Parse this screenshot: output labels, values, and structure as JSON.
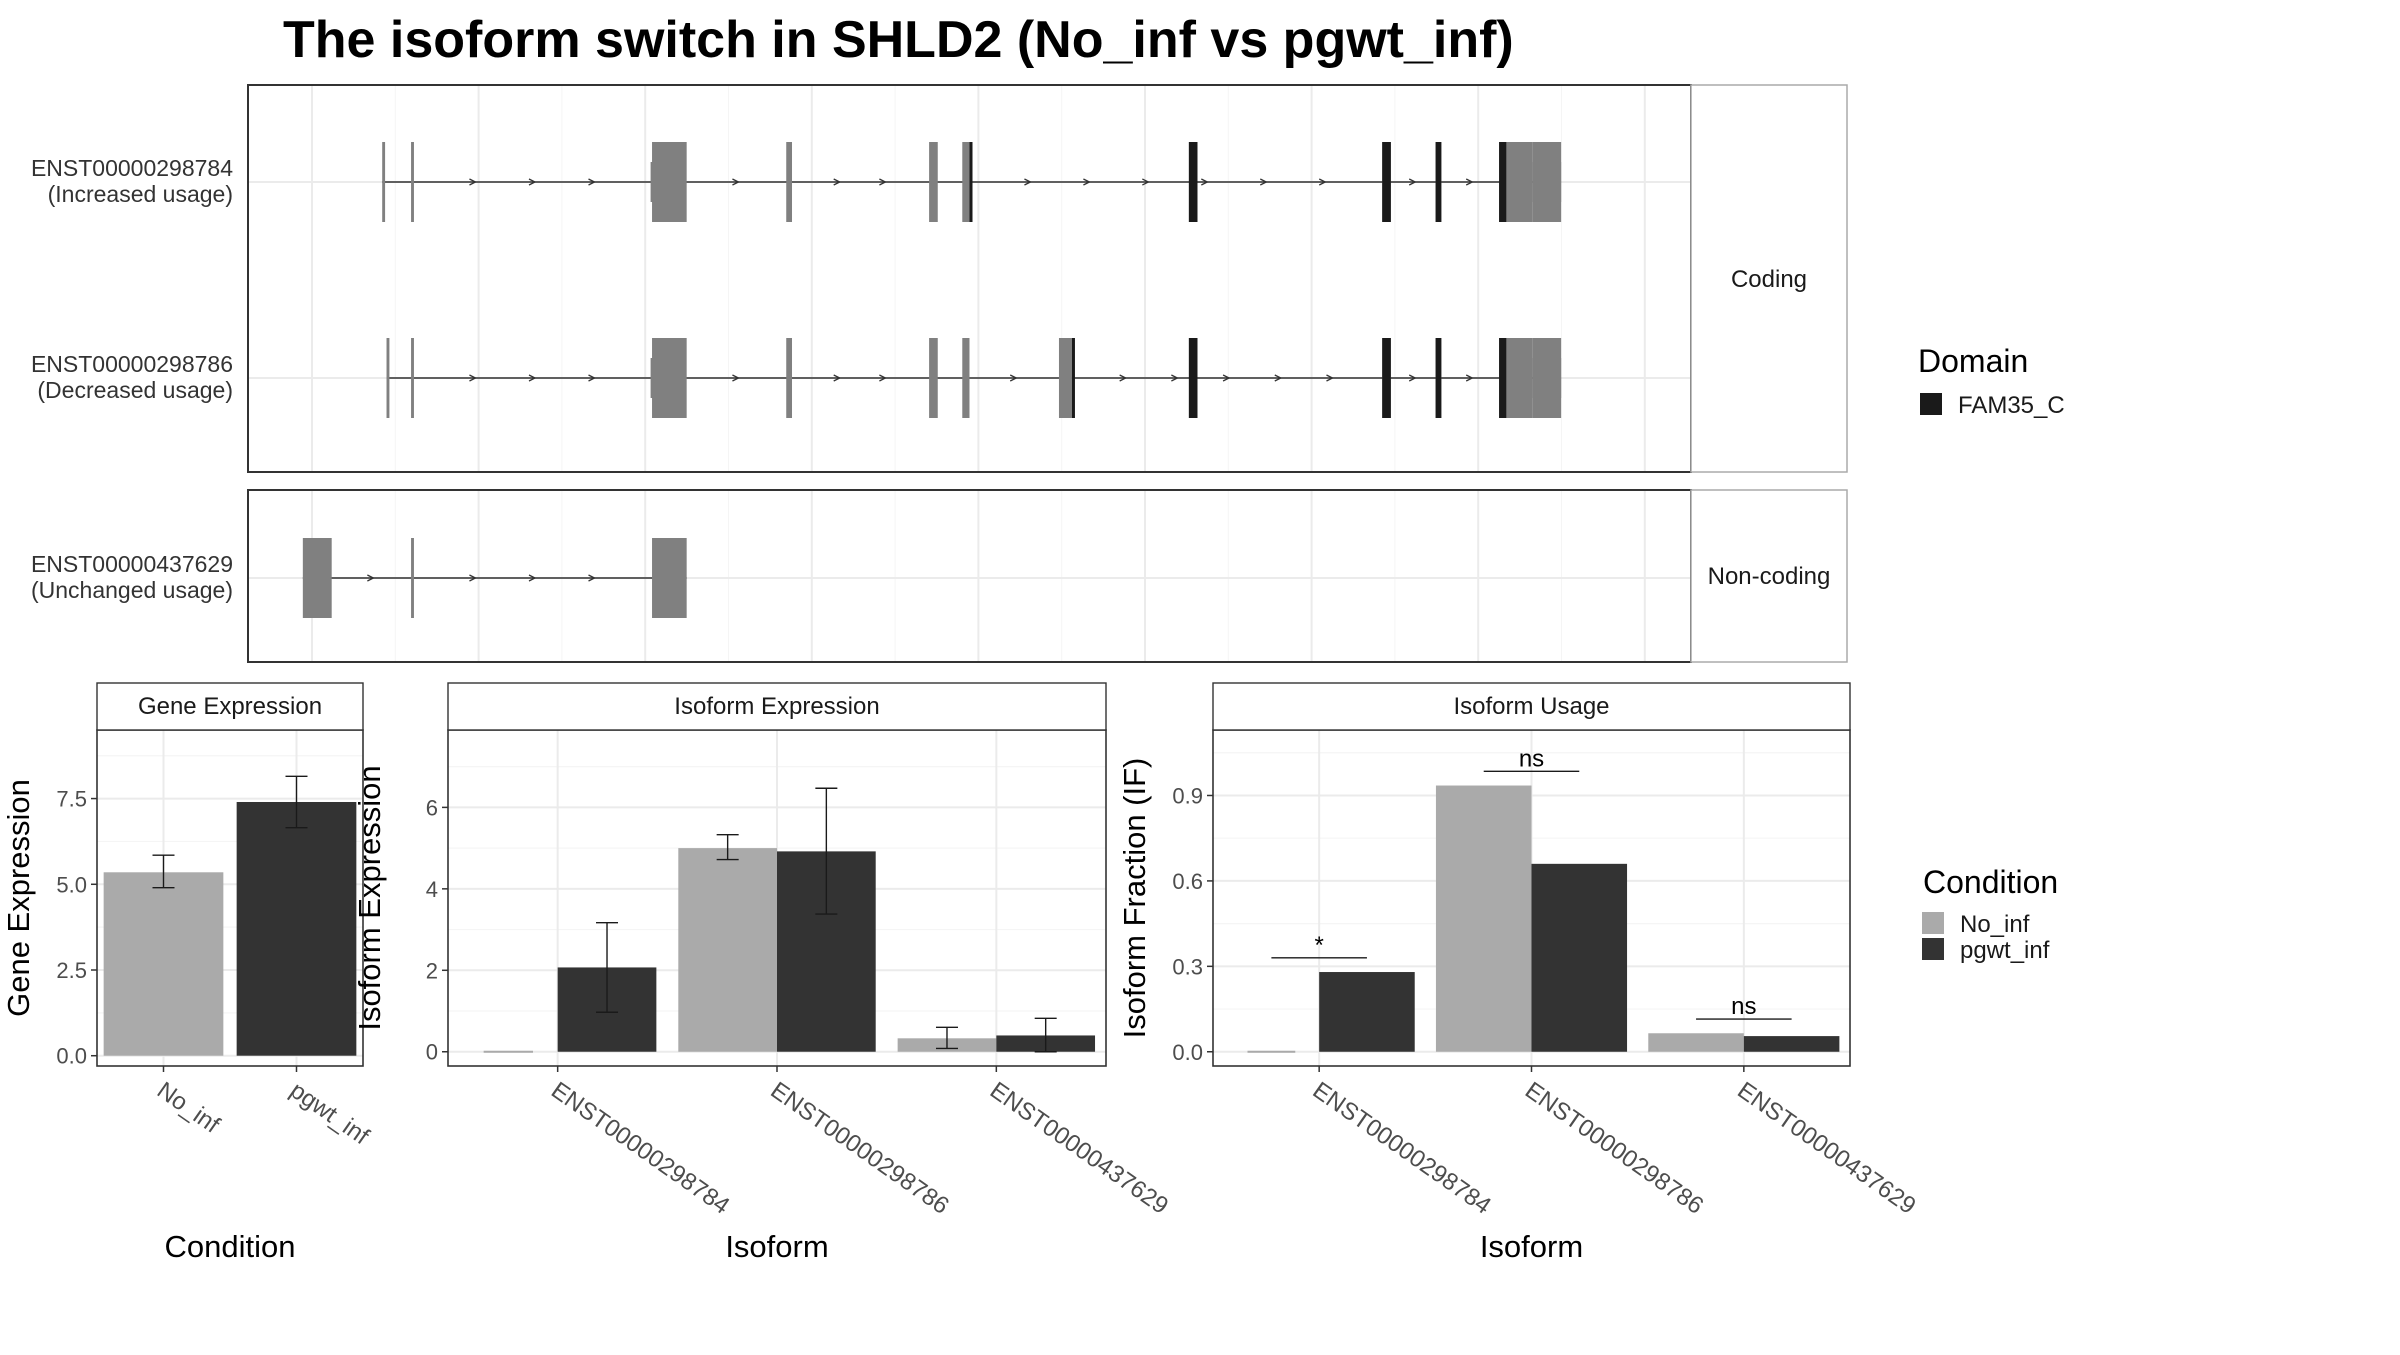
{
  "title": "The isoform switch in SHLD2 (No_inf vs pgwt_inf)",
  "structure": {
    "coding_panel_label": "Coding",
    "noncoding_panel_label": "Non-coding",
    "domain_legend": {
      "title": "Domain",
      "items": [
        {
          "label": "FAM35_C",
          "color": "#1a1a1a"
        }
      ]
    },
    "colors": {
      "exon": "#808080",
      "domain": "#1a1a1a",
      "intron": "#333333"
    },
    "transcripts": [
      {
        "id": "ENST00000298784",
        "usage": "(Increased usage)",
        "group": "coding",
        "exons": [
          [
            0.93,
            0.95
          ],
          [
            1.13,
            1.15
          ],
          [
            2.8,
            3.04
          ],
          [
            3.73,
            3.77
          ],
          [
            4.72,
            4.78
          ],
          [
            4.95,
            5.0
          ],
          [
            7.86,
            7.92
          ],
          [
            8.23,
            8.27
          ],
          [
            8.67,
            8.9
          ],
          [
            8.9,
            9.1
          ]
        ],
        "domains": [
          [
            5.0,
            5.02
          ],
          [
            6.52,
            6.58
          ],
          [
            7.86,
            7.92
          ],
          [
            8.23,
            8.27
          ],
          [
            8.67,
            8.72
          ]
        ],
        "utrs": [
          [
            2.79,
            2.8
          ],
          [
            8.9,
            9.1
          ]
        ]
      },
      {
        "id": "ENST00000298786",
        "usage": "(Decreased usage)",
        "group": "coding",
        "exons": [
          [
            0.96,
            0.98
          ],
          [
            1.13,
            1.15
          ],
          [
            2.8,
            3.04
          ],
          [
            3.73,
            3.77
          ],
          [
            4.72,
            4.78
          ],
          [
            4.95,
            5.0
          ],
          [
            5.62,
            5.71
          ],
          [
            7.86,
            7.92
          ],
          [
            8.23,
            8.27
          ],
          [
            8.67,
            8.9
          ],
          [
            8.9,
            9.1
          ]
        ],
        "domains": [
          [
            5.71,
            5.72
          ],
          [
            6.52,
            6.58
          ],
          [
            7.86,
            7.92
          ],
          [
            8.23,
            8.27
          ],
          [
            8.67,
            8.72
          ]
        ],
        "utrs": [
          [
            2.79,
            2.8
          ],
          [
            8.9,
            9.1
          ]
        ]
      },
      {
        "id": "ENST00000437629",
        "usage": "(Unchanged usage)",
        "group": "noncoding",
        "exons": [
          [
            0.38,
            0.58
          ],
          [
            1.13,
            1.15
          ],
          [
            2.8,
            3.04
          ]
        ],
        "domains": [],
        "utrs": []
      }
    ]
  },
  "chart_data": [
    {
      "type": "bar",
      "panel": "Gene Expression",
      "categories": [
        "No_inf",
        "pgwt_inf"
      ],
      "values": [
        5.35,
        7.4
      ],
      "errors": [
        [
          4.9,
          5.85
        ],
        [
          6.65,
          8.15
        ]
      ],
      "colors": [
        "#aaaaaa",
        "#333333"
      ],
      "xlabel": "Condition",
      "ylabel": "Gene Expression",
      "ylim": [
        -0.3,
        9.5
      ],
      "yticks": [
        0.0,
        2.5,
        5.0,
        7.5
      ],
      "ytick_labels": [
        "0.0",
        "2.5",
        "5.0",
        "7.5"
      ],
      "grid": true
    },
    {
      "type": "bar",
      "panel": "Isoform Expression",
      "categories": [
        "ENST00000298784",
        "ENST00000298786",
        "ENST00000437629"
      ],
      "series": [
        {
          "name": "No_inf",
          "color": "#aaaaaa",
          "values": [
            0.0,
            5.0,
            0.33
          ],
          "errors": [
            [
              0.0,
              0.0
            ],
            [
              4.72,
              5.33
            ],
            [
              0.08,
              0.6
            ]
          ]
        },
        {
          "name": "pgwt_inf",
          "color": "#333333",
          "values": [
            2.07,
            4.92,
            0.4
          ],
          "errors": [
            [
              0.97,
              3.17
            ],
            [
              3.38,
              6.47
            ],
            [
              0.0,
              0.82
            ]
          ]
        }
      ],
      "xlabel": "Isoform",
      "ylabel": "Isoform Expression",
      "ylim": [
        -0.35,
        7.9
      ],
      "yticks": [
        0,
        2,
        4,
        6
      ],
      "ytick_labels": [
        "0",
        "2",
        "4",
        "6"
      ],
      "grid": true
    },
    {
      "type": "bar",
      "panel": "Isoform Usage",
      "categories": [
        "ENST00000298784",
        "ENST00000298786",
        "ENST00000437629"
      ],
      "series": [
        {
          "name": "No_inf",
          "color": "#aaaaaa",
          "values": [
            0.0,
            0.935,
            0.065
          ]
        },
        {
          "name": "pgwt_inf",
          "color": "#333333",
          "values": [
            0.28,
            0.66,
            0.055
          ]
        }
      ],
      "significance": [
        "*",
        "ns",
        "ns"
      ],
      "significance_y": [
        0.33,
        0.985,
        0.115
      ],
      "xlabel": "Isoform",
      "ylabel": "Isoform Fraction (IF)",
      "ylim": [
        -0.05,
        1.13
      ],
      "yticks": [
        0.0,
        0.3,
        0.6,
        0.9
      ],
      "ytick_labels": [
        "0.0",
        "0.3",
        "0.6",
        "0.9"
      ],
      "grid": true
    }
  ],
  "condition_legend": {
    "title": "Condition",
    "items": [
      {
        "label": "No_inf",
        "color": "#aaaaaa"
      },
      {
        "label": "pgwt_inf",
        "color": "#333333"
      }
    ]
  }
}
